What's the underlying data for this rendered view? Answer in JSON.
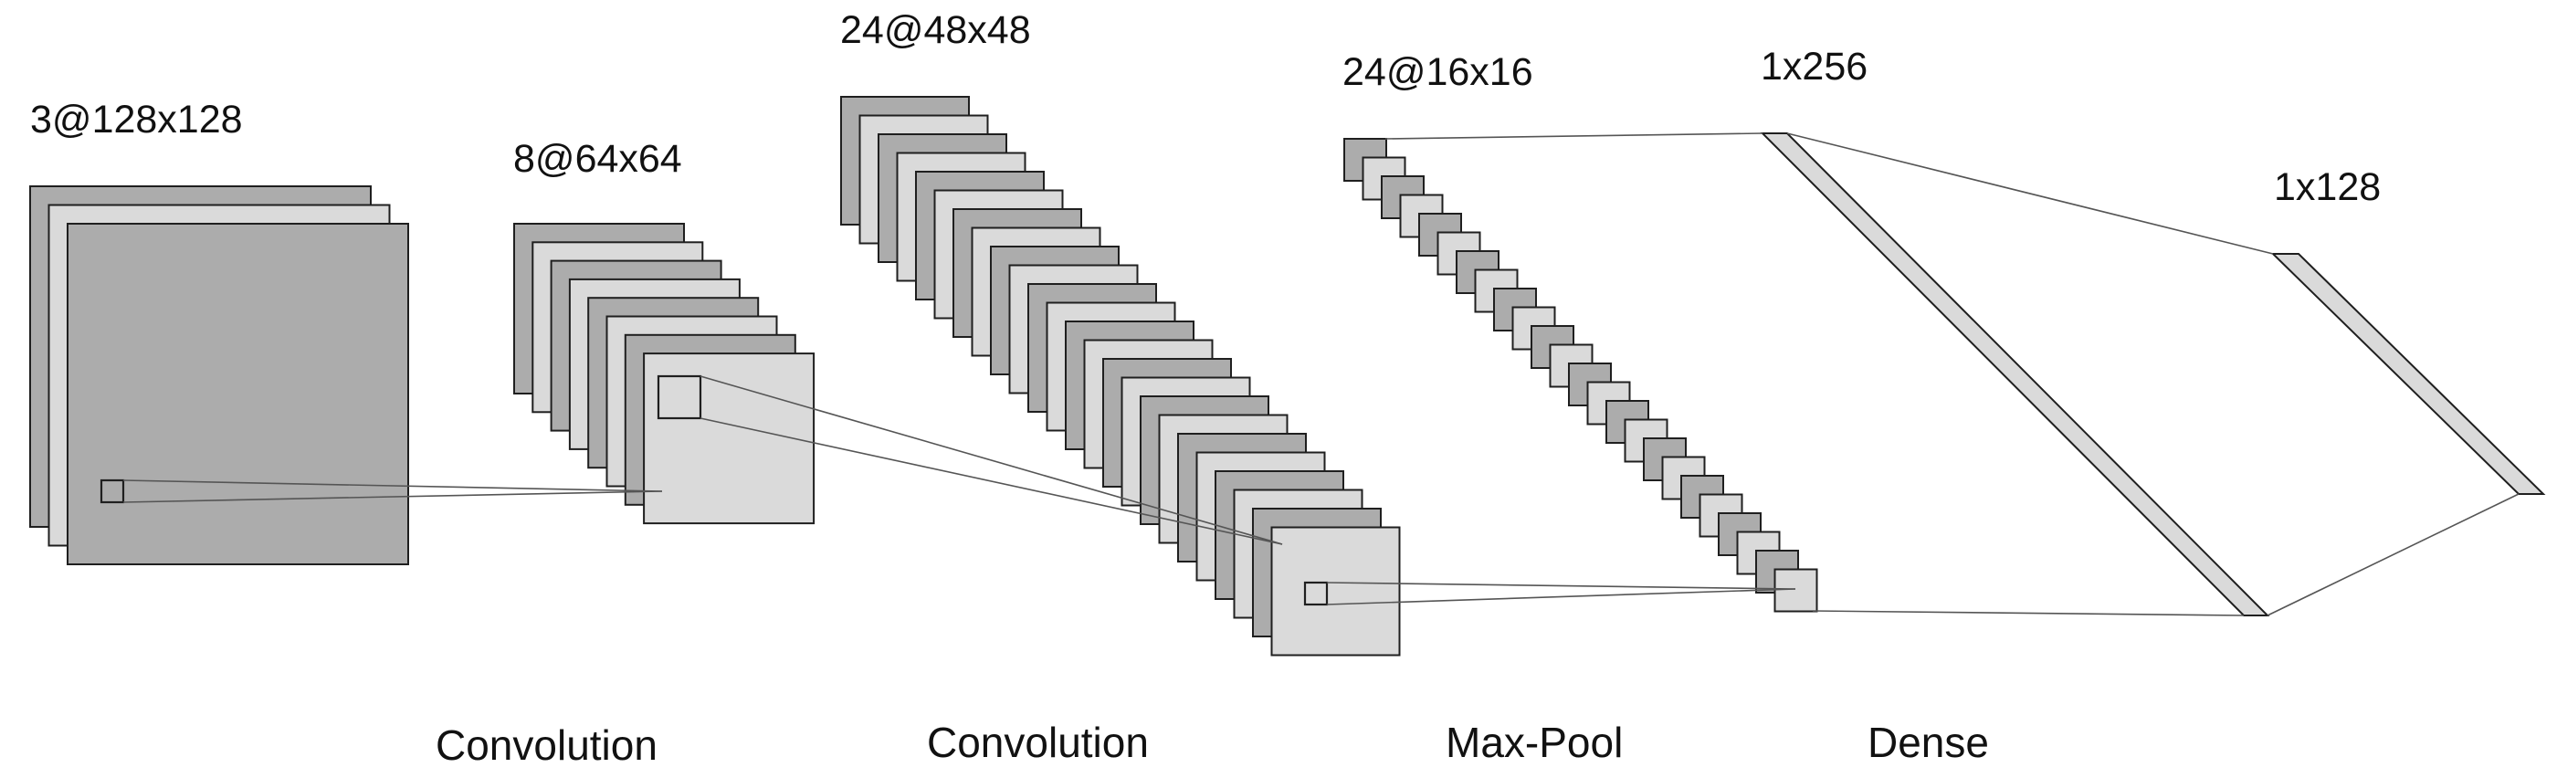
{
  "colors": {
    "dark": "#acacac",
    "light": "#dadada",
    "stroke": "#1f1f1f",
    "connector": "#555555",
    "text": "#111111"
  },
  "layers": [
    {
      "id": "input",
      "label": "3@128x128",
      "maps": 3
    },
    {
      "id": "conv1",
      "label": "8@64x64",
      "maps": 8
    },
    {
      "id": "conv2",
      "label": "24@48x48",
      "maps": 24
    },
    {
      "id": "pool",
      "label": "24@16x16",
      "maps": 24
    },
    {
      "id": "dense1",
      "label": "1x256"
    },
    {
      "id": "dense2",
      "label": "1x128"
    }
  ],
  "operations": [
    "Convolution",
    "Convolution",
    "Max-Pool",
    "Dense"
  ]
}
